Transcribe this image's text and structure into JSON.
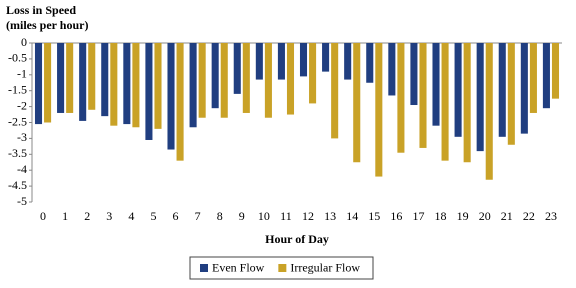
{
  "chart_data": {
    "type": "bar",
    "y_label": [
      "Loss in Speed",
      "(miles per hour)"
    ],
    "x_label": "Hour of Day",
    "categories": [
      "0",
      "1",
      "2",
      "3",
      "4",
      "5",
      "6",
      "7",
      "8",
      "9",
      "10",
      "11",
      "12",
      "13",
      "14",
      "15",
      "16",
      "17",
      "18",
      "19",
      "20",
      "21",
      "22",
      "23"
    ],
    "series": [
      {
        "name": "Even Flow",
        "color": "#203e80",
        "values": [
          -2.55,
          -2.2,
          -2.45,
          -2.3,
          -2.55,
          -3.05,
          -3.35,
          -2.65,
          -2.05,
          -1.6,
          -1.15,
          -1.15,
          -1.05,
          -0.9,
          -1.15,
          -1.25,
          -1.65,
          -1.95,
          -2.6,
          -2.95,
          -3.4,
          -2.95,
          -2.85,
          -2.05
        ]
      },
      {
        "name": "Irregular Flow",
        "color": "#c9a227",
        "values": [
          -2.5,
          -2.2,
          -2.1,
          -2.6,
          -2.65,
          -2.7,
          -3.7,
          -2.35,
          -2.35,
          -2.2,
          -2.35,
          -2.25,
          -1.9,
          -3.0,
          -3.75,
          -4.2,
          -3.45,
          -3.3,
          -3.7,
          -3.75,
          -4.3,
          -3.2,
          -2.2,
          -1.75
        ]
      }
    ],
    "ylim": [
      0,
      -5
    ],
    "yticks": [
      0,
      -0.5,
      -1,
      -1.5,
      -2,
      -2.5,
      -3,
      -3.5,
      -4,
      -4.5,
      -5
    ],
    "legend": "bottom"
  }
}
